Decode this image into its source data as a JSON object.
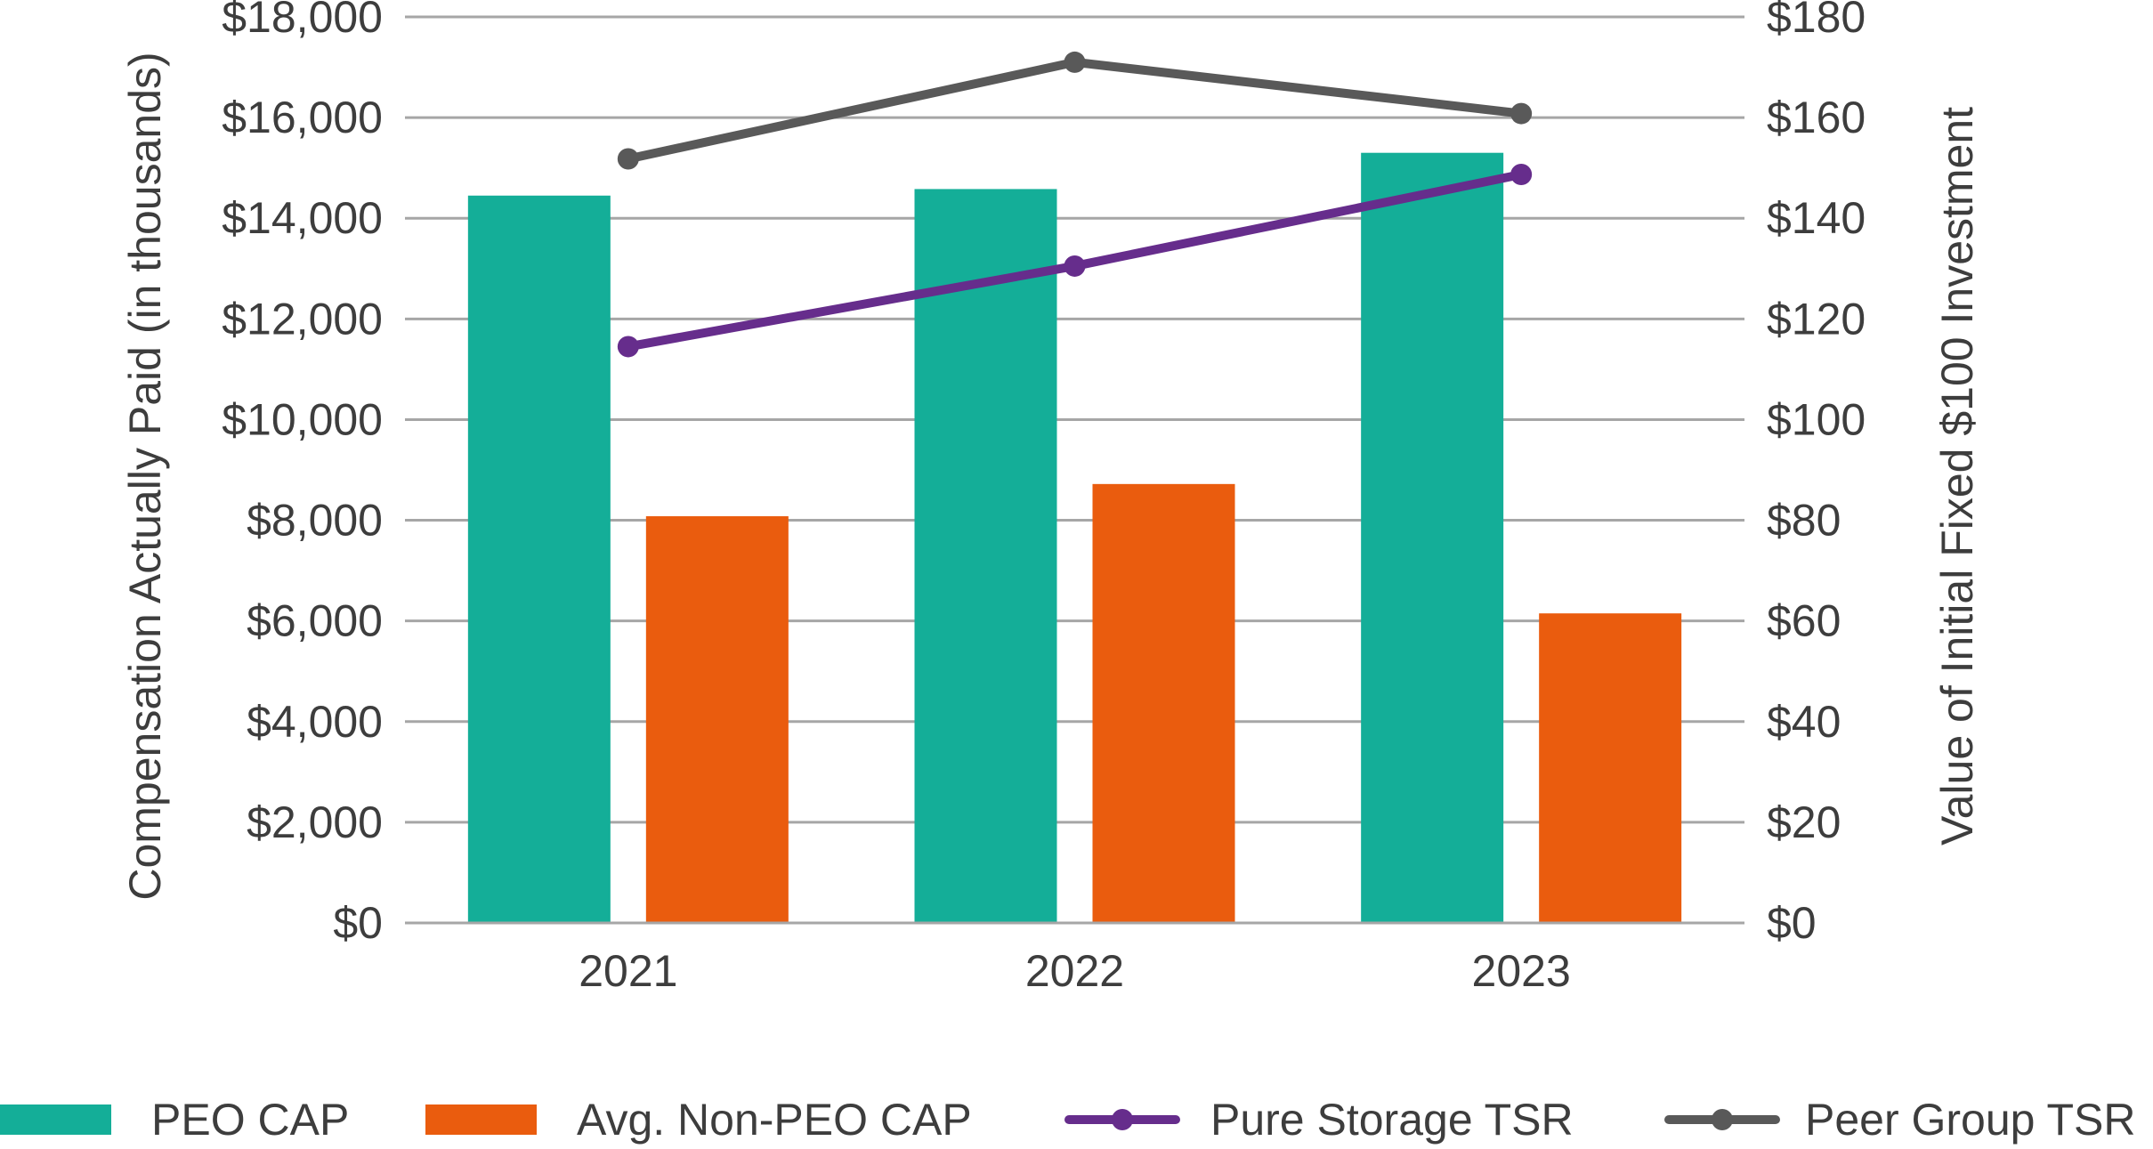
{
  "chart_data": {
    "type": "bar",
    "categories": [
      "2021",
      "2022",
      "2023"
    ],
    "series": [
      {
        "name": "PEO CAP",
        "kind": "bar",
        "axis": "left",
        "color": "#14ae98",
        "values": [
          14450,
          14580,
          15300
        ]
      },
      {
        "name": "Avg. Non-PEO CAP",
        "kind": "bar",
        "axis": "left",
        "color": "#ea5c0e",
        "values": [
          8080,
          8720,
          6150
        ]
      },
      {
        "name": "Pure Storage TSR",
        "kind": "line",
        "axis": "right",
        "color": "#662d8c",
        "values": [
          114.5,
          130.5,
          148.7
        ]
      },
      {
        "name": "Peer Group TSR",
        "kind": "line",
        "axis": "right",
        "color": "#595959",
        "values": [
          151.8,
          171.0,
          160.8
        ]
      }
    ],
    "ylabel_left": "Compensation Actually Paid (in thousands)",
    "ylabel_right": "Value of Initial Fixed $100 Investment",
    "ylim_left": [
      0,
      18000
    ],
    "ylim_right": [
      0,
      180
    ],
    "yticks_left": [
      "$0",
      "$2,000",
      "$4,000",
      "$6,000",
      "$8,000",
      "$10,000",
      "$12,000",
      "$14,000",
      "$16,000",
      "$18,000"
    ],
    "yticks_right": [
      "$0",
      "$20",
      "$40",
      "$60",
      "$80",
      "$100",
      "$120",
      "$140",
      "$160",
      "$180"
    ],
    "grid": true,
    "legend_position": "bottom"
  }
}
